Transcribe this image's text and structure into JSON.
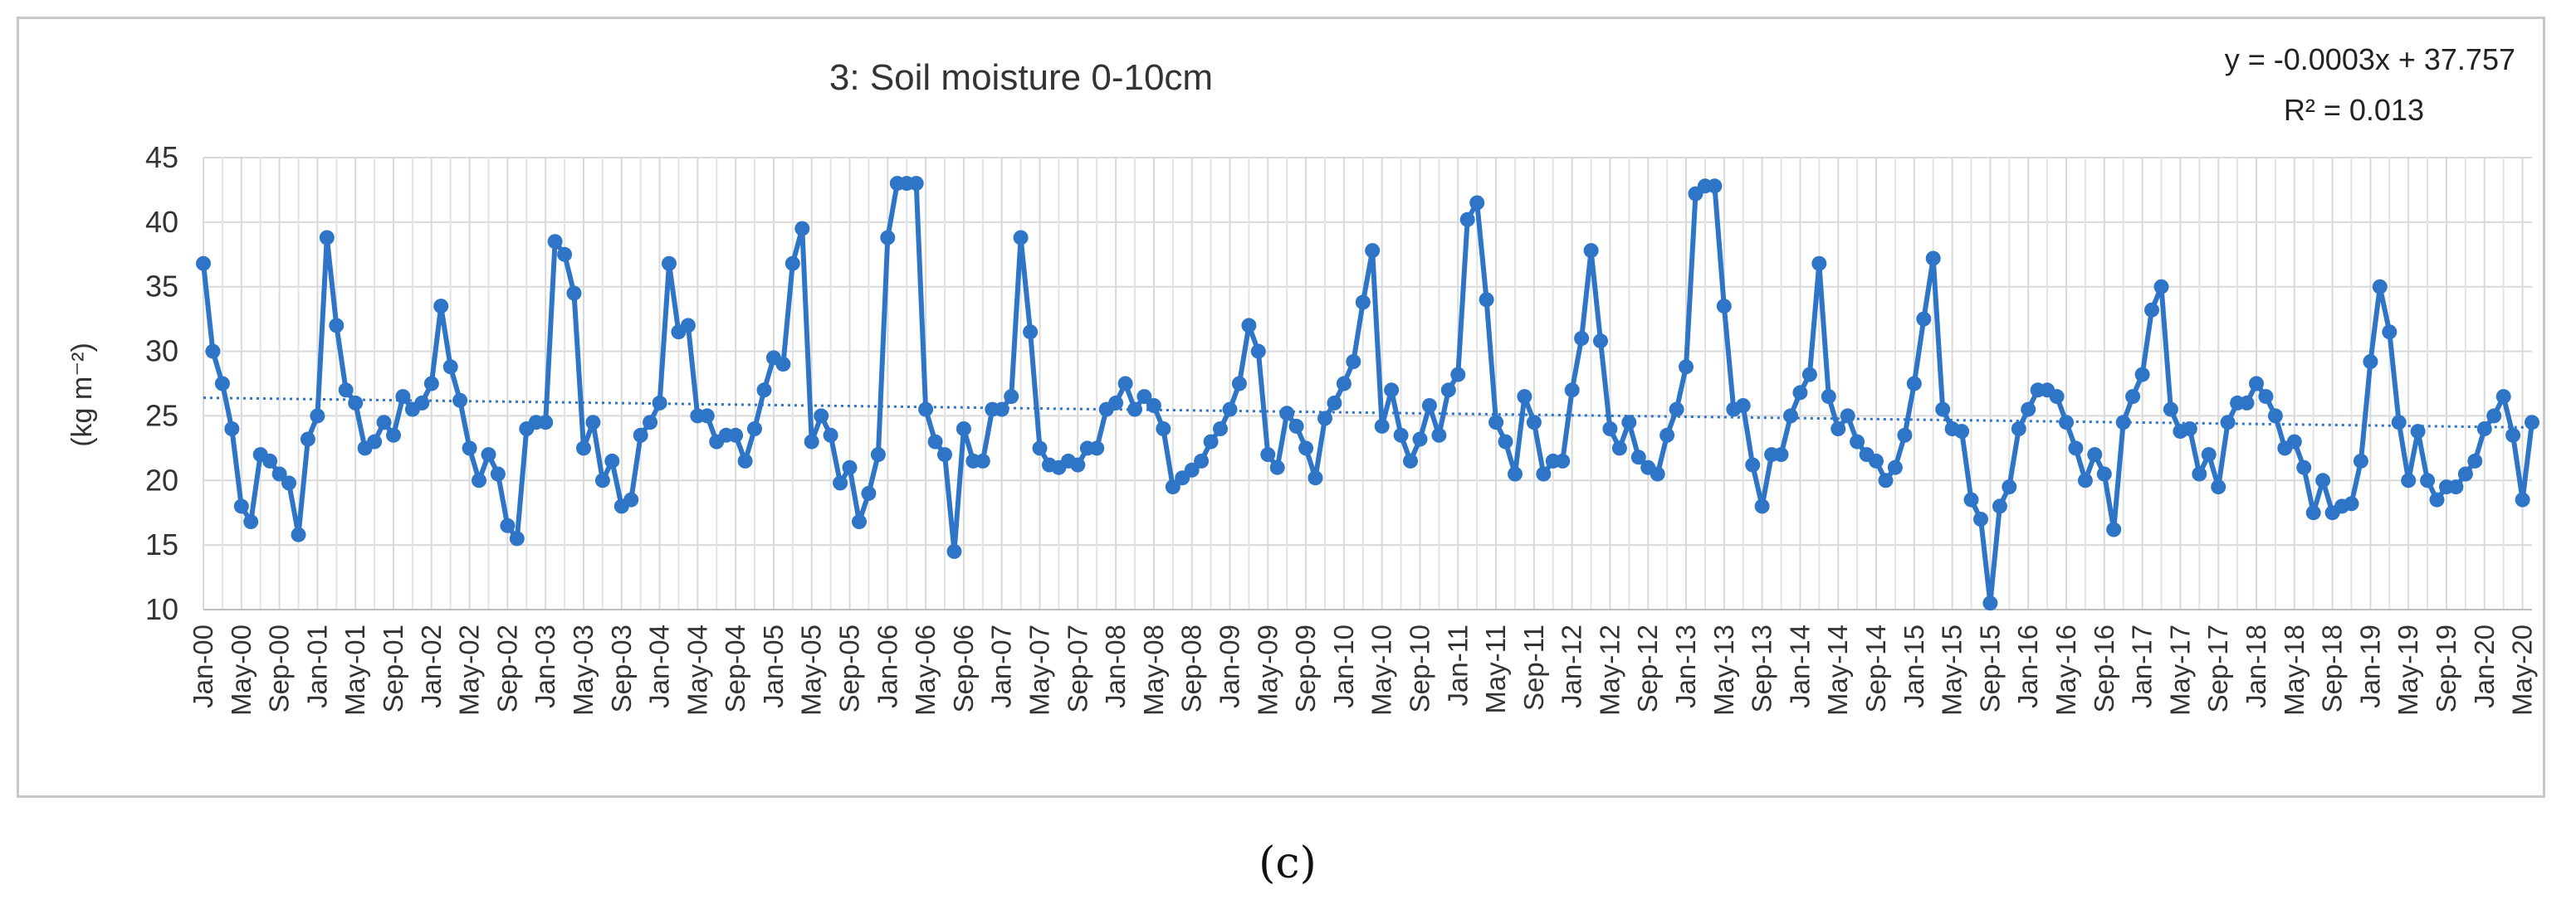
{
  "chart_data": {
    "type": "line",
    "title": "3: Soil moisture 0-10cm",
    "ylabel": "(kg m⁻²)",
    "xlabel": "",
    "ylim": [
      10,
      45
    ],
    "yticks": [
      "10",
      "15",
      "20",
      "25",
      "30",
      "35",
      "40",
      "45"
    ],
    "grid": true,
    "start": "Jan-00",
    "frequency": "monthly",
    "xtick_labels": [
      "Jan-00",
      "May-00",
      "Sep-00",
      "Jan-01",
      "May-01",
      "Sep-01",
      "Jan-02",
      "May-02",
      "Sep-02",
      "Jan-03",
      "May-03",
      "Sep-03",
      "Jan-04",
      "May-04",
      "Sep-04",
      "Jan-05",
      "May-05",
      "Sep-05",
      "Jan-06",
      "May-06",
      "Sep-06",
      "Jan-07",
      "May-07",
      "Sep-07",
      "Jan-08",
      "May-08",
      "Sep-08",
      "Jan-09",
      "May-09",
      "Sep-09",
      "Jan-10",
      "May-10",
      "Sep-10",
      "Jan-11",
      "May-11",
      "Sep-11",
      "Jan-12",
      "May-12",
      "Sep-12",
      "Jan-13",
      "May-13",
      "Sep-13",
      "Jan-14",
      "May-14",
      "Sep-14",
      "Jan-15",
      "May-15",
      "Sep-15",
      "Jan-16",
      "May-16",
      "Sep-16",
      "Jan-17",
      "May-17",
      "Sep-17",
      "Jan-18",
      "May-18",
      "Sep-18",
      "Jan-19",
      "May-19",
      "Sep-19",
      "Jan-20",
      "May-20"
    ],
    "series": [
      {
        "name": "Soil moisture 0-10cm",
        "color": "#2e75c8",
        "values": [
          36.8,
          30,
          27.5,
          24,
          18,
          16.8,
          22,
          21.5,
          20.5,
          19.8,
          15.8,
          23.2,
          25,
          38.8,
          32,
          27,
          26,
          22.5,
          23,
          24.5,
          23.5,
          26.5,
          25.5,
          26,
          27.5,
          33.5,
          28.8,
          26.2,
          22.5,
          20,
          22,
          20.5,
          16.5,
          15.5,
          24,
          24.5,
          24.5,
          38.5,
          37.5,
          34.5,
          22.5,
          24.5,
          20,
          21.5,
          18,
          18.5,
          23.5,
          24.5,
          26,
          36.8,
          31.5,
          32,
          25,
          25,
          23,
          23.5,
          23.5,
          21.5,
          24,
          27,
          29.5,
          29,
          36.8,
          39.5,
          23,
          25,
          23.5,
          19.8,
          21,
          16.8,
          19,
          22,
          38.8,
          43,
          43,
          43,
          25.5,
          23,
          22,
          14.5,
          24,
          21.5,
          21.5,
          25.5,
          25.5,
          26.5,
          38.8,
          31.5,
          22.5,
          21.2,
          21,
          21.5,
          21.2,
          22.5,
          22.5,
          25.5,
          26,
          27.5,
          25.5,
          26.5,
          25.8,
          24,
          19.5,
          20.2,
          20.8,
          21.5,
          23,
          24,
          25.5,
          27.5,
          32,
          30,
          22,
          21,
          25.2,
          24.2,
          22.5,
          20.2,
          24.8,
          26,
          27.5,
          29.2,
          33.8,
          37.8,
          24.2,
          27,
          23.5,
          21.5,
          23.2,
          25.8,
          23.5,
          27,
          28.2,
          40.2,
          41.5,
          34,
          24.5,
          23,
          20.5,
          26.5,
          24.5,
          20.5,
          21.5,
          21.5,
          27,
          31,
          37.8,
          30.8,
          24,
          22.5,
          24.5,
          21.8,
          21,
          20.5,
          23.5,
          25.5,
          28.8,
          42.2,
          42.8,
          42.8,
          33.5,
          25.5,
          25.8,
          21.2,
          18,
          22,
          22,
          25,
          26.8,
          28.2,
          36.8,
          26.5,
          24,
          25,
          23,
          22,
          21.5,
          20,
          21,
          23.5,
          27.5,
          32.5,
          37.2,
          25.5,
          24,
          23.8,
          18.5,
          17,
          10.5,
          18,
          19.5,
          24,
          25.5,
          27,
          27,
          26.5,
          24.5,
          22.5,
          20,
          22,
          20.5,
          16.2,
          24.5,
          26.5,
          28.2,
          33.2,
          35,
          25.5,
          23.8,
          24,
          20.5,
          22,
          19.5,
          24.5,
          26,
          26,
          27.5,
          26.5,
          25,
          22.5,
          23,
          21,
          17.5,
          20,
          17.5,
          18,
          18.2,
          21.5,
          29.2,
          35,
          31.5,
          24.5,
          20,
          23.8,
          20,
          18.5,
          19.5,
          19.5,
          20.5,
          21.5,
          24,
          25,
          26.5,
          23.5,
          18.5,
          24.5
        ]
      }
    ],
    "trendline": {
      "equation": "y = -0.0003x + 37.757",
      "r2": "R² = 0.013",
      "slope": -0.0003,
      "intercept": 37.757,
      "start_value": 26.4,
      "end_value": 24.1
    }
  },
  "caption": "(c)"
}
